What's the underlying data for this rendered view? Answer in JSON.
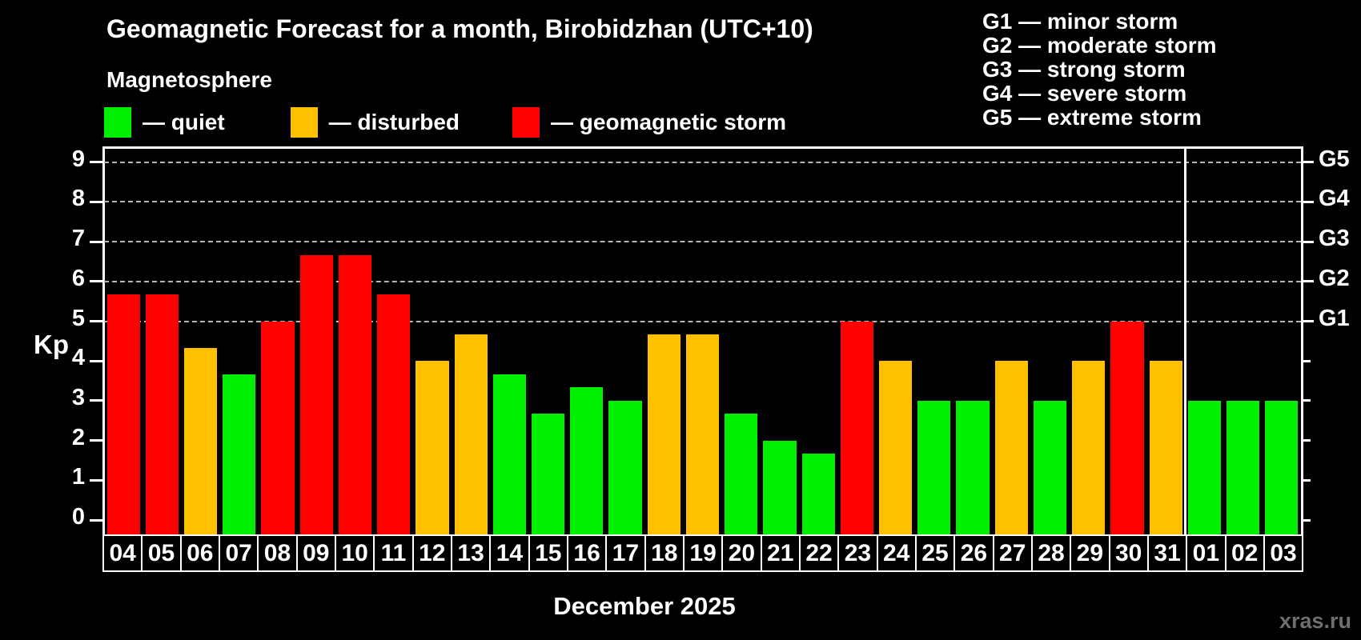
{
  "title": "Geomagnetic Forecast for a month, Birobidzhan (UTC+10)",
  "subtitle": "Magnetosphere",
  "legend": {
    "quiet_label": "— quiet",
    "disturbed_label": "— disturbed",
    "storm_label": "— geomagnetic storm"
  },
  "g_legend": [
    "G1 — minor storm",
    "G2 — moderate storm",
    "G3 — strong storm",
    "G4 — severe storm",
    "G5 — extreme storm"
  ],
  "colors": {
    "quiet": "#00ee00",
    "disturbed": "#ffc000",
    "storm": "#ff0000",
    "background": "#000000",
    "text": "#ffffff",
    "grid": "#b5b5b5",
    "watermark": "#6f6f6f"
  },
  "y_axis": {
    "label": "Kp",
    "ticks": [
      0,
      1,
      2,
      3,
      4,
      5,
      6,
      7,
      8,
      9
    ]
  },
  "right_axis": {
    "labels": [
      "G1",
      "G2",
      "G3",
      "G4",
      "G5"
    ],
    "kp_levels": [
      5,
      6,
      7,
      8,
      9
    ]
  },
  "x_axis": {
    "caption": "December 2025"
  },
  "watermark": "xras.ru",
  "chart_data": {
    "type": "bar",
    "title": "Geomagnetic Forecast for a month, Birobidzhan (UTC+10)",
    "ylabel": "Kp",
    "ylim": [
      0,
      9
    ],
    "grid": "dashed horizontal at G-storm levels",
    "gridlines_at": [
      5,
      6,
      7,
      8,
      9
    ],
    "legend_position": "top-left and top-right",
    "categories": [
      "04",
      "05",
      "06",
      "07",
      "08",
      "09",
      "10",
      "11",
      "12",
      "13",
      "14",
      "15",
      "16",
      "17",
      "18",
      "19",
      "20",
      "21",
      "22",
      "23",
      "24",
      "25",
      "26",
      "27",
      "28",
      "29",
      "30",
      "31",
      "01",
      "02",
      "03"
    ],
    "values": [
      5.67,
      5.67,
      4.33,
      3.67,
      5,
      6.67,
      6.67,
      5.67,
      4,
      4.67,
      3.67,
      2.67,
      3.33,
      3,
      4.67,
      4.67,
      2.67,
      2,
      1.67,
      5,
      4,
      3,
      3,
      4,
      3,
      4,
      5,
      4,
      3,
      3,
      3
    ],
    "statuses": [
      "storm",
      "storm",
      "disturbed",
      "quiet",
      "storm",
      "storm",
      "storm",
      "storm",
      "disturbed",
      "disturbed",
      "quiet",
      "quiet",
      "quiet",
      "quiet",
      "disturbed",
      "disturbed",
      "quiet",
      "quiet",
      "quiet",
      "storm",
      "disturbed",
      "quiet",
      "quiet",
      "disturbed",
      "quiet",
      "disturbed",
      "storm",
      "disturbed",
      "quiet",
      "quiet",
      "quiet"
    ],
    "month_separator_after_index": 27
  }
}
